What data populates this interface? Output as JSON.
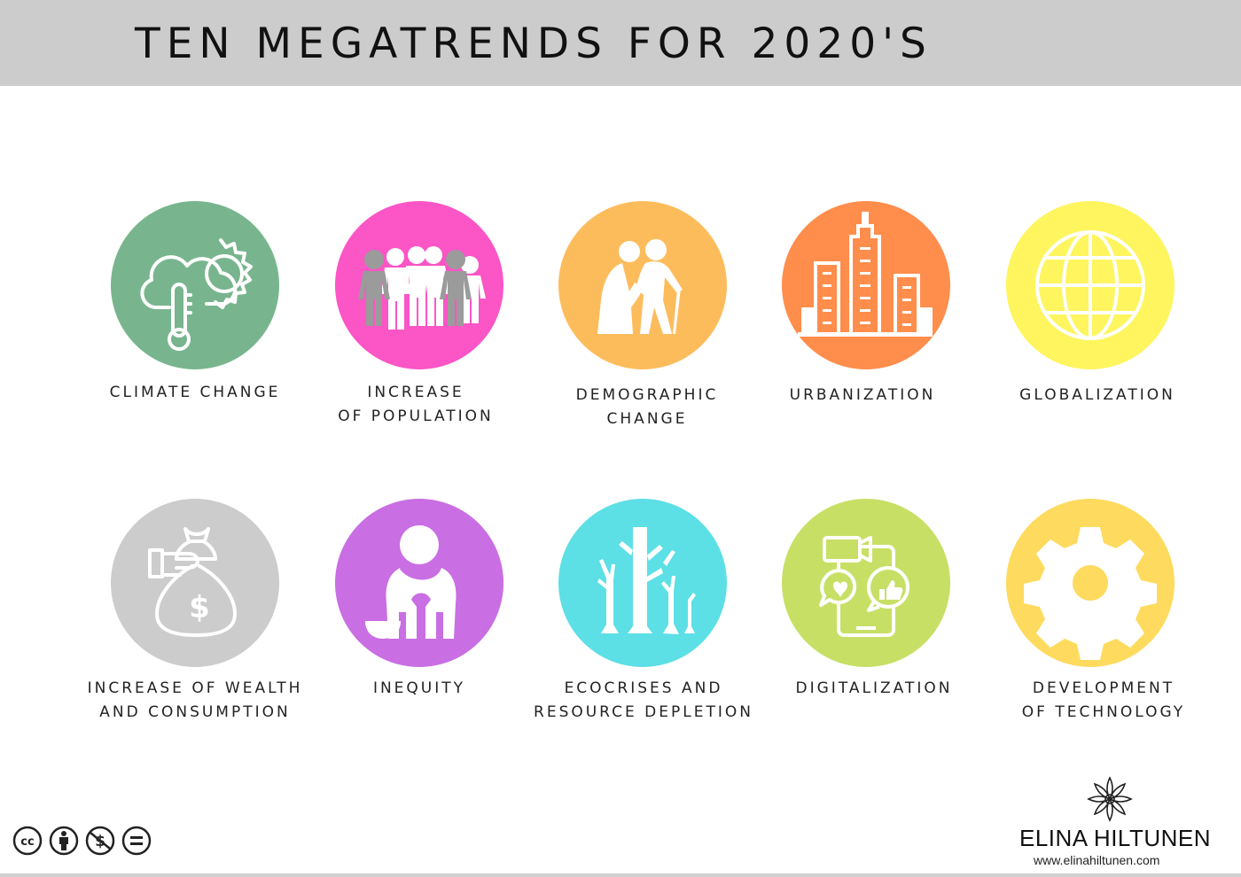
{
  "header": {
    "title": "TEN MEGATRENDS FOR 2020'S"
  },
  "trends": [
    {
      "label_lines": [
        "CLIMATE CHANGE"
      ],
      "color": "#78b58e",
      "icon": "climate-icon"
    },
    {
      "label_lines": [
        "INCREASE",
        "OF POPULATION"
      ],
      "color": "#fb55c6",
      "icon": "population-icon"
    },
    {
      "label_lines": [
        "DEMOGRAPHIC",
        "CHANGE"
      ],
      "color": "#fdbc5c",
      "icon": "elderly-people-icon"
    },
    {
      "label_lines": [
        "URBANIZATION"
      ],
      "color": "#ff8d4c",
      "icon": "city-buildings-icon"
    },
    {
      "label_lines": [
        "GLOBALIZATION"
      ],
      "color": "#fef55f",
      "icon": "globe-icon"
    },
    {
      "label_lines": [
        "INCREASE OF WEALTH",
        "AND CONSUMPTION"
      ],
      "color": "#cccccc",
      "icon": "money-bag-icon"
    },
    {
      "label_lines": [
        "INEQUITY"
      ],
      "color": "#c96ee3",
      "icon": "beggar-icon"
    },
    {
      "label_lines": [
        "ECOCRISES AND",
        "RESOURCE DEPLETION"
      ],
      "color": "#5ddfe6",
      "icon": "dead-trees-icon"
    },
    {
      "label_lines": [
        "DIGITALIZATION"
      ],
      "color": "#c8df66",
      "icon": "smartphone-social-icon"
    },
    {
      "label_lines": [
        "DEVELOPMENT",
        "OF TECHNOLOGY"
      ],
      "color": "#fedb5e",
      "icon": "gear-icon"
    }
  ],
  "license": {
    "icons": [
      "cc-icon",
      "by-attribution-icon",
      "non-commercial-icon",
      "no-derivatives-icon"
    ]
  },
  "brand": {
    "name": "ELINA HILTUNEN",
    "url": "www.elinahiltunen.com",
    "logo": "mandala-logo-icon"
  }
}
